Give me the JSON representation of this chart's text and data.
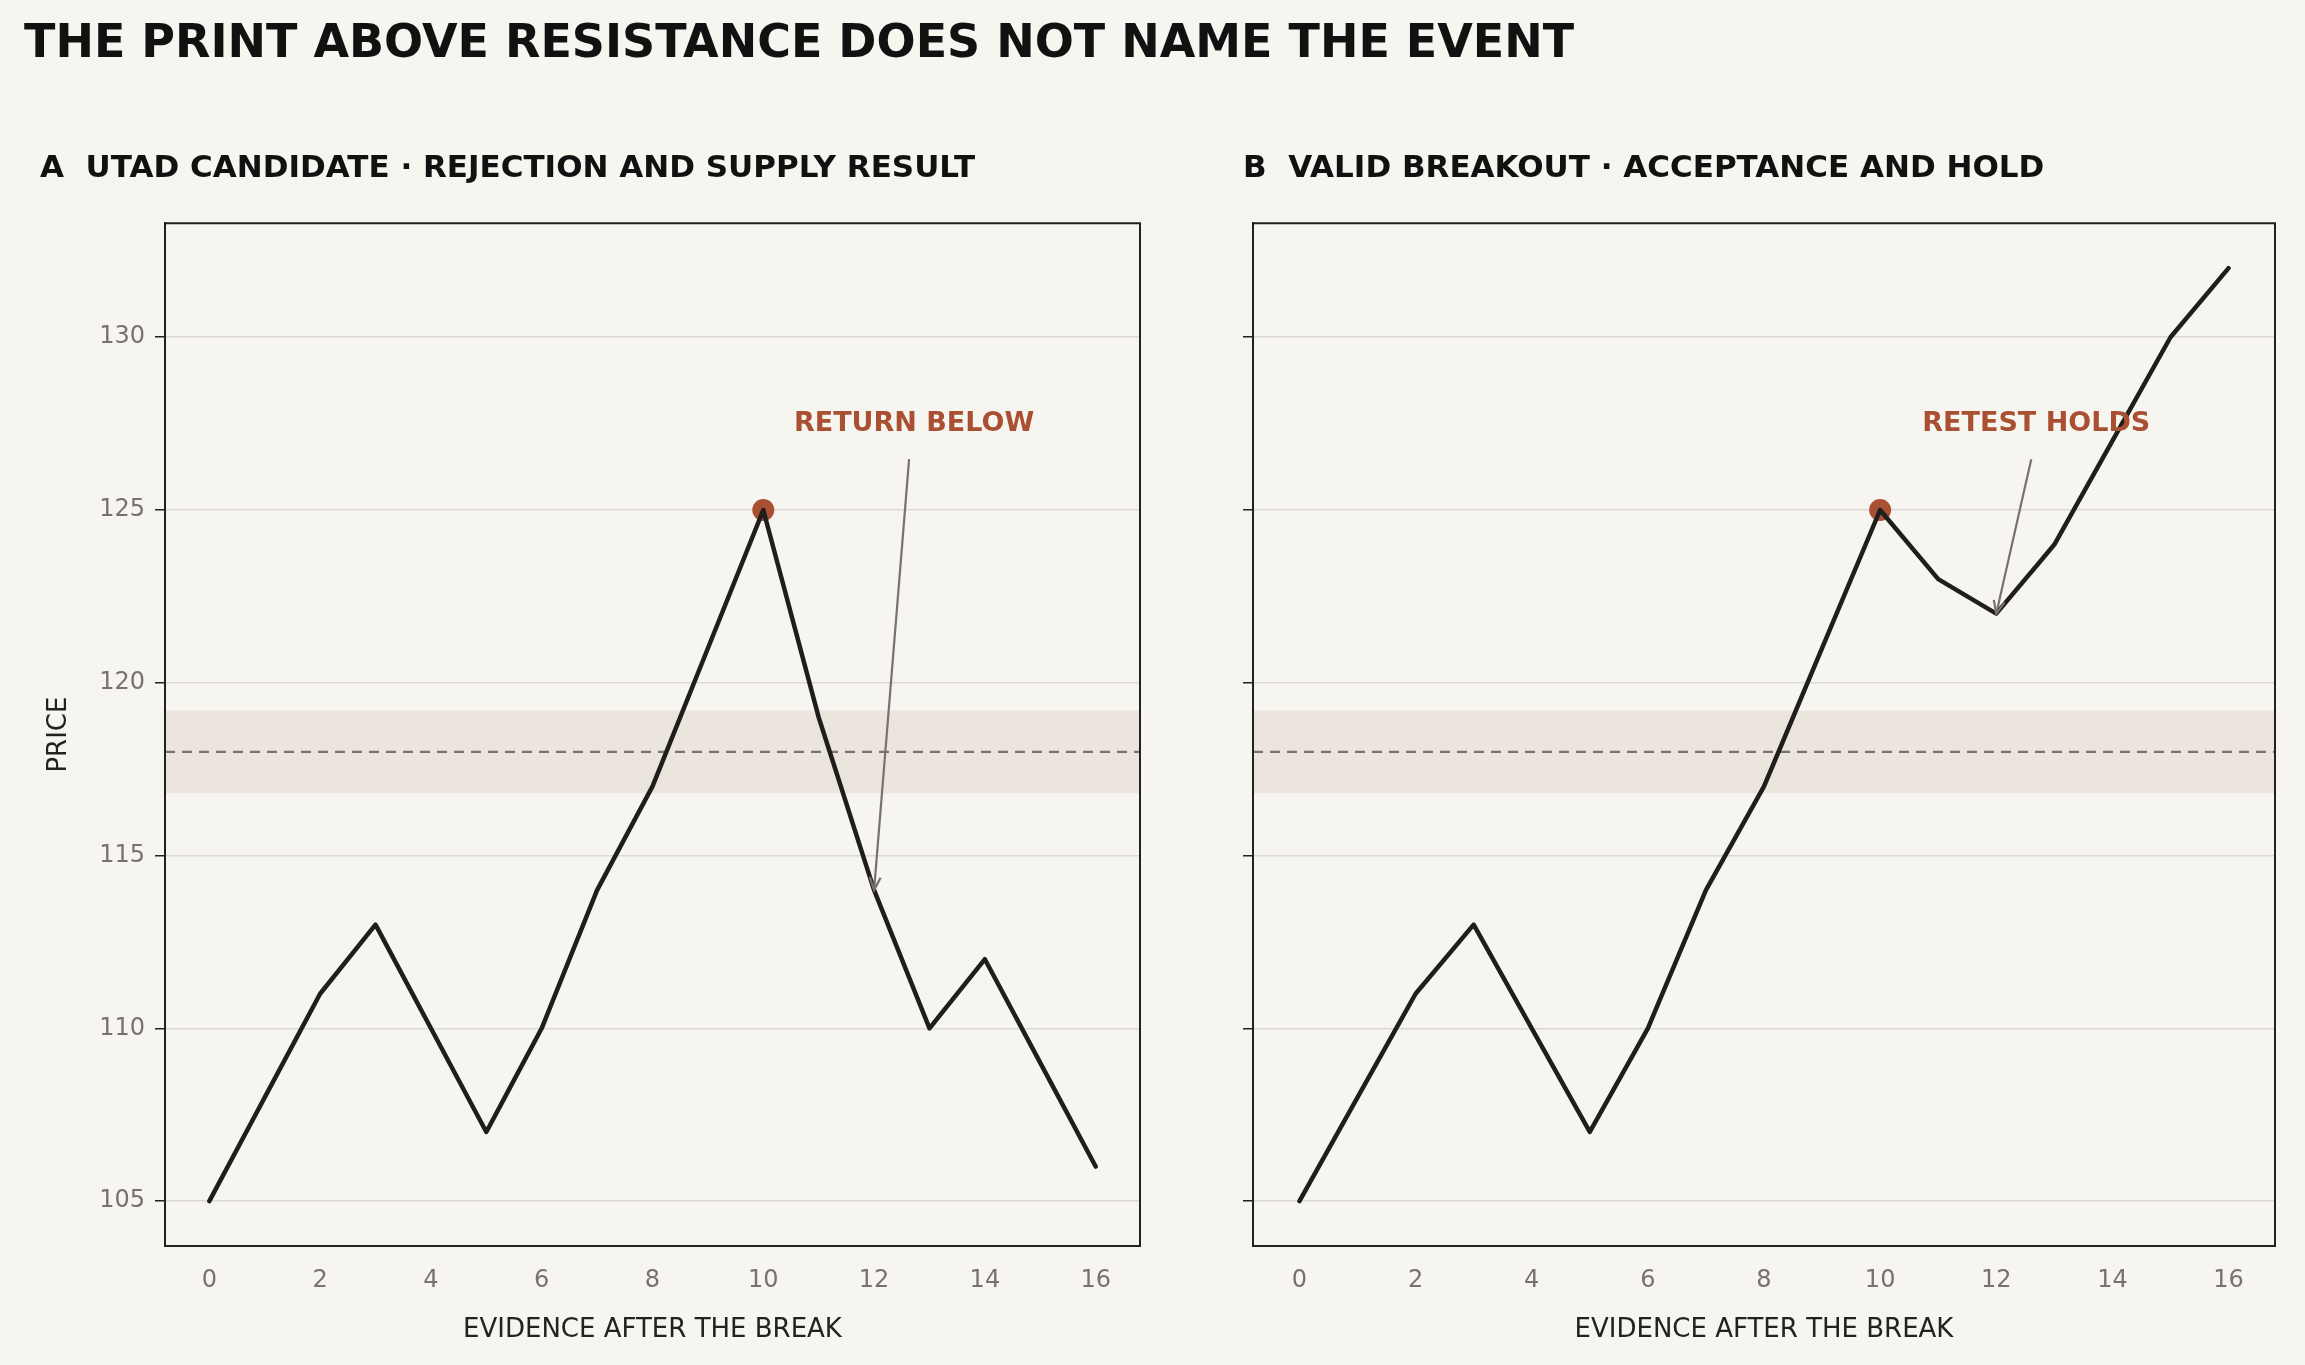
{
  "chart_data": [
    {
      "type": "other",
      "title": "THE PRINT ABOVE RESISTANCE DOES NOT NAME THE EVENT"
    },
    {
      "type": "line",
      "title": "A  UTAD CANDIDATE · REJECTION AND SUPPLY RESULT",
      "xlabel": "EVIDENCE AFTER THE BREAK",
      "ylabel": "PRICE",
      "x": [
        0,
        1,
        2,
        3,
        4,
        5,
        6,
        7,
        8,
        9,
        10,
        11,
        12,
        13,
        14,
        15,
        16
      ],
      "series": [
        {
          "type": "line",
          "color": "#1f1e1c",
          "marker": "none",
          "values": [
            105,
            108,
            111,
            113,
            110,
            107,
            110,
            114,
            117,
            121,
            125,
            119,
            114,
            110,
            112,
            109,
            106
          ]
        },
        {
          "type": "scatter",
          "color": "#a94f32",
          "marker": "circle",
          "x": [
            10
          ],
          "values": [
            125
          ]
        }
      ],
      "xlim": [
        -0.8,
        16.8
      ],
      "xticks": [
        0,
        2,
        4,
        6,
        8,
        10,
        12,
        14,
        16
      ],
      "ylim": [
        103.7,
        133.3
      ],
      "yticks": [
        105,
        110,
        115,
        120,
        125,
        130
      ],
      "ref_lines": [
        {
          "axis": "y",
          "value": 118,
          "color": "#77726d",
          "line_style": "dashed"
        }
      ],
      "bands": [
        {
          "axis": "y",
          "from": 116.8,
          "to": 119.2,
          "color": "#ebe5dd"
        }
      ],
      "annotations": [
        {
          "text": "RETURN BELOW",
          "x": 12,
          "y": 114
        }
      ],
      "grid": "y",
      "legend": false
    },
    {
      "type": "line",
      "title": "B  VALID BREAKOUT · ACCEPTANCE AND HOLD",
      "xlabel": "EVIDENCE AFTER THE BREAK",
      "x": [
        0,
        1,
        2,
        3,
        4,
        5,
        6,
        7,
        8,
        9,
        10,
        11,
        12,
        13,
        14,
        15,
        16
      ],
      "series": [
        {
          "type": "line",
          "color": "#1f1e1c",
          "marker": "none",
          "values": [
            105,
            108,
            111,
            113,
            110,
            107,
            110,
            114,
            117,
            121,
            125,
            123,
            122,
            124,
            127,
            130,
            132
          ]
        },
        {
          "type": "scatter",
          "color": "#a94f32",
          "marker": "circle",
          "x": [
            10
          ],
          "values": [
            125
          ]
        }
      ],
      "xlim": [
        -0.8,
        16.8
      ],
      "xticks": [
        0,
        2,
        4,
        6,
        8,
        10,
        12,
        14,
        16
      ],
      "ylim": [
        103.7,
        133.3
      ],
      "yticks": [
        105,
        110,
        115,
        120,
        125,
        130
      ],
      "ref_lines": [
        {
          "axis": "y",
          "value": 118,
          "color": "#77726d",
          "line_style": "dashed"
        }
      ],
      "bands": [
        {
          "axis": "y",
          "from": 116.8,
          "to": 119.2,
          "color": "#ebe5dd"
        }
      ],
      "annotations": [
        {
          "text": "RETEST HOLDS",
          "x": 12,
          "y": 122
        }
      ],
      "grid": "y",
      "tick_labels": "x",
      "legend": false
    }
  ]
}
